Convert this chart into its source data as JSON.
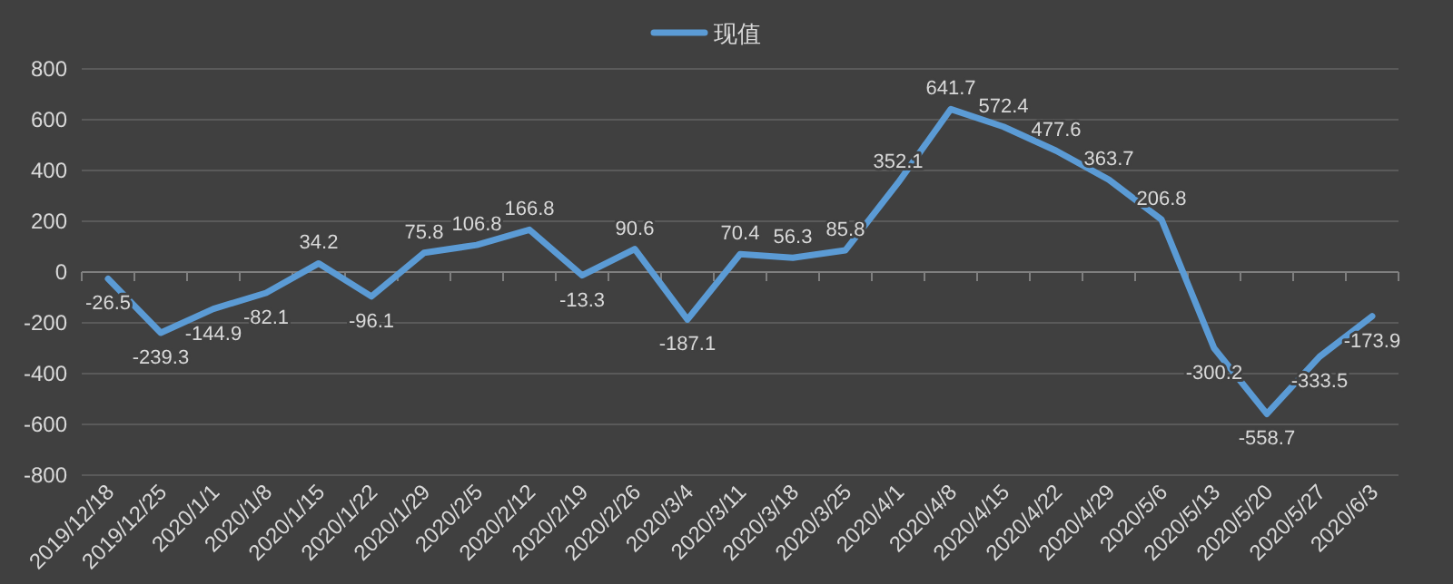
{
  "chart_data": {
    "type": "line",
    "categories": [
      "2019/12/18",
      "2019/12/25",
      "2020/1/1",
      "2020/1/8",
      "2020/1/15",
      "2020/1/22",
      "2020/1/29",
      "2020/2/5",
      "2020/2/12",
      "2020/2/19",
      "2020/2/26",
      "2020/3/4",
      "2020/3/11",
      "2020/3/18",
      "2020/3/25",
      "2020/4/1",
      "2020/4/8",
      "2020/4/15",
      "2020/4/22",
      "2020/4/29",
      "2020/5/6",
      "2020/5/13",
      "2020/5/20",
      "2020/5/27",
      "2020/6/3"
    ],
    "series": [
      {
        "name": "现值",
        "color": "#5b9bd5",
        "values": [
          -26.5,
          -239.3,
          -144.9,
          -82.1,
          34.2,
          -96.1,
          75.8,
          106.8,
          166.8,
          -13.3,
          90.6,
          -187.1,
          70.4,
          56.3,
          85.8,
          352.1,
          641.7,
          572.4,
          477.6,
          363.7,
          206.8,
          -300.2,
          -558.7,
          -333.5,
          -173.9
        ]
      }
    ],
    "ylim": [
      -800,
      800
    ],
    "yticks": [
      -800,
      -600,
      -400,
      -200,
      0,
      200,
      400,
      600,
      800
    ],
    "grid": "y",
    "legend": "top",
    "data_labels": true,
    "marker": "none",
    "line_style": "solid"
  }
}
